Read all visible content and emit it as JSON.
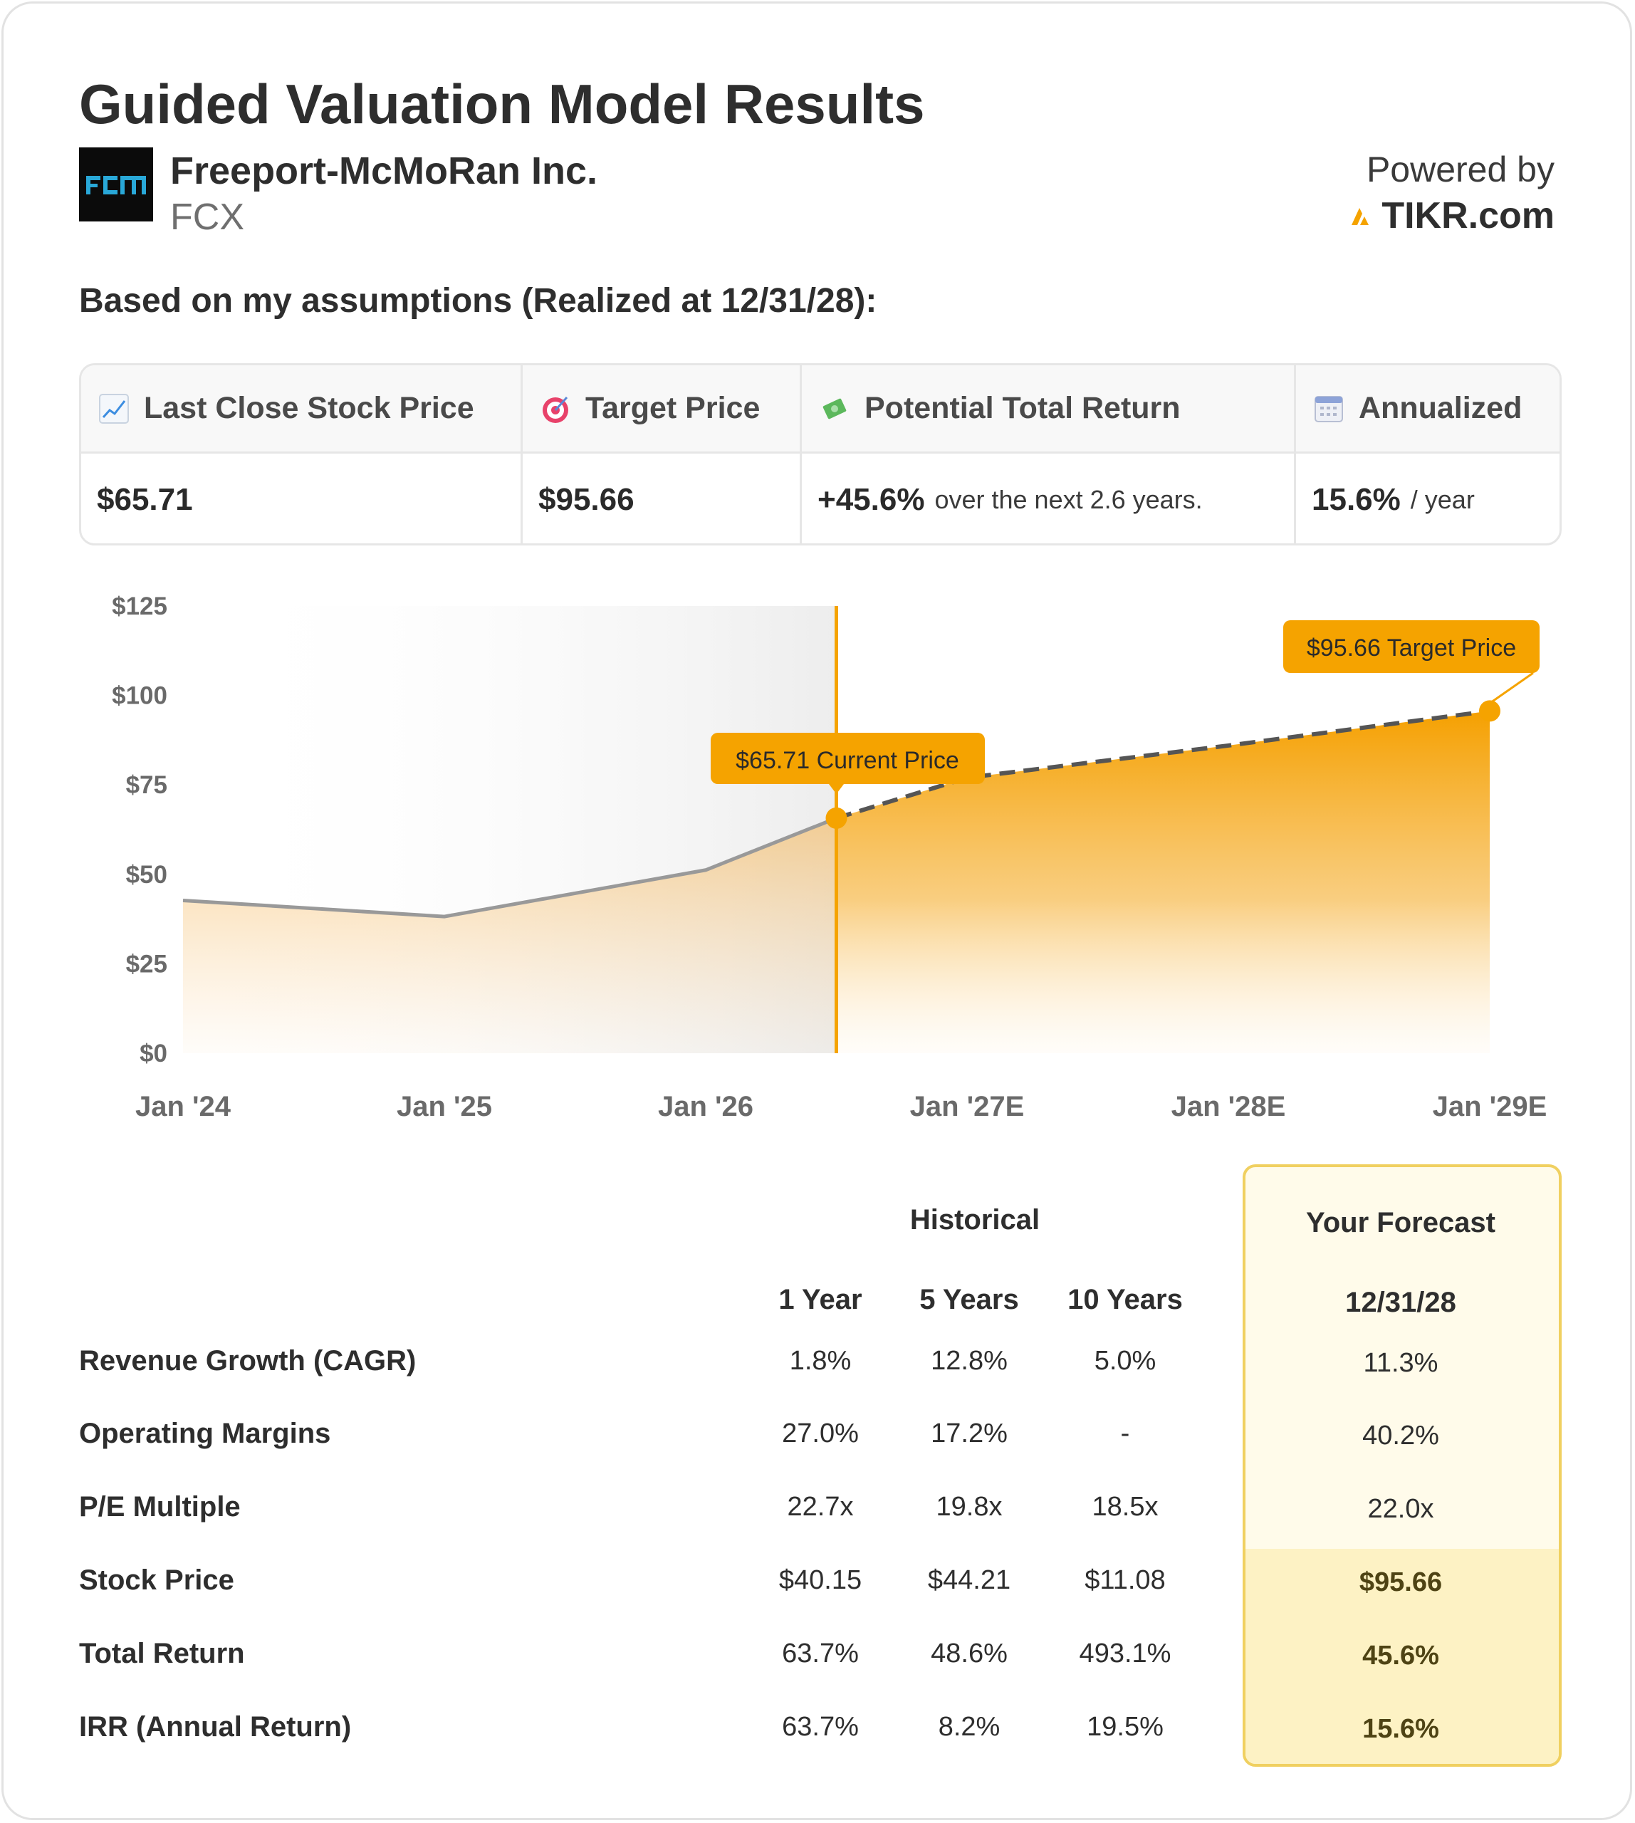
{
  "header": {
    "title": "Guided Valuation Model Results",
    "company_name": "Freeport-McMoRan Inc.",
    "ticker": "FCX",
    "logo_text": "FCX",
    "powered_by": "Powered by",
    "brand": "TIKR.com",
    "subtitle": "Based on my assumptions (Realized at 12/31/28):"
  },
  "summary": {
    "last_close_label": "Last Close Stock Price",
    "last_close_value": "$65.71",
    "target_label": "Target Price",
    "target_value": "$95.66",
    "return_label": "Potential Total Return",
    "return_value": "+45.6%",
    "return_note": "over the next 2.6 years.",
    "annualized_label": "Annualized",
    "annualized_value": "15.6%",
    "annualized_note": "/ year"
  },
  "chart_data": {
    "type": "area",
    "x": [
      "2024-01",
      "2025-01",
      "2026-01",
      "2026-07",
      "2027-01",
      "2028-01",
      "2029-01"
    ],
    "x_tick_labels": [
      "Jan '24",
      "Jan '25",
      "Jan '26",
      "Jan '27E",
      "Jan '28E",
      "Jan '29E"
    ],
    "y_tick_labels": [
      "$0",
      "$25",
      "$50",
      "$75",
      "$100",
      "$125"
    ],
    "ylim": [
      0,
      125
    ],
    "historical": [
      {
        "x": "2024-01",
        "y": 42.7
      },
      {
        "x": "2025-01",
        "y": 38.2
      },
      {
        "x": "2026-01",
        "y": 51.2
      },
      {
        "x": "2026-07",
        "y": 65.71
      }
    ],
    "forecast": [
      {
        "x": "2026-07",
        "y": 65.71
      },
      {
        "x": "2027-01",
        "y": 77.0
      },
      {
        "x": "2028-01",
        "y": 86.0
      },
      {
        "x": "2029-01",
        "y": 95.66
      }
    ],
    "current_label": "$65.71 Current Price",
    "target_label": "$95.66 Target Price",
    "colors": {
      "accent": "#f5a300",
      "historical_line": "#999999",
      "forecast_line": "#555555"
    }
  },
  "table": {
    "historical_header": "Historical",
    "forecast_header": "Your Forecast",
    "col_headers": [
      "1 Year",
      "5 Years",
      "10 Years"
    ],
    "forecast_date": "12/31/28",
    "rows": [
      {
        "label": "Revenue Growth (CAGR)",
        "values": [
          "1.8%",
          "12.8%",
          "5.0%"
        ],
        "forecast": "11.3%"
      },
      {
        "label": "Operating Margins",
        "values": [
          "27.0%",
          "17.2%",
          "-"
        ],
        "forecast": "40.2%"
      },
      {
        "label": "P/E Multiple",
        "values": [
          "22.7x",
          "19.8x",
          "18.5x"
        ],
        "forecast": "22.0x"
      },
      {
        "label": "Stock Price",
        "values": [
          "$40.15",
          "$44.21",
          "$11.08"
        ],
        "forecast": "$95.66"
      },
      {
        "label": "Total Return",
        "values": [
          "63.7%",
          "48.6%",
          "493.1%"
        ],
        "forecast": "45.6%"
      },
      {
        "label": "IRR (Annual Return)",
        "values": [
          "63.7%",
          "8.2%",
          "19.5%"
        ],
        "forecast": "15.6%"
      }
    ]
  }
}
